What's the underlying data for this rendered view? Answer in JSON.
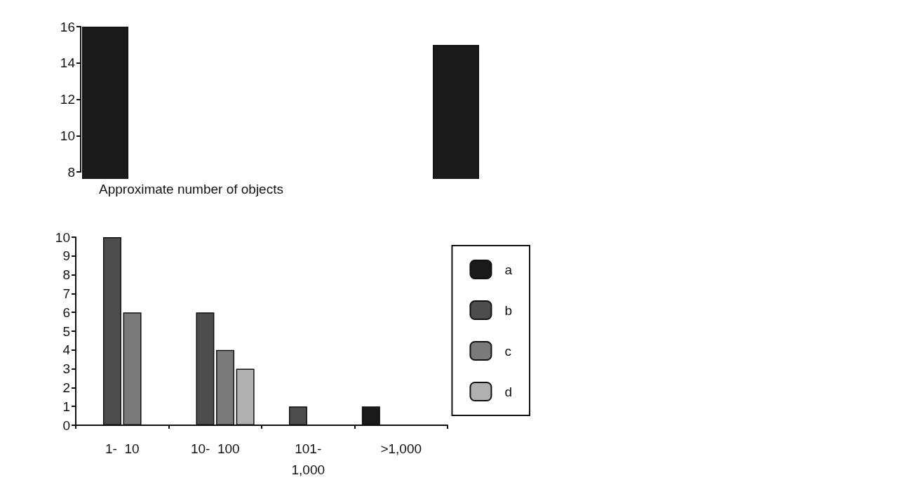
{
  "chart_data": [
    {
      "type": "bar",
      "categories": [
        null,
        null
      ],
      "series": [
        {
          "color": "#1a1a1a",
          "values": [
            16,
            15
          ]
        }
      ],
      "ylim": [
        8,
        16
      ],
      "yticks": [
        8,
        10,
        12,
        14,
        16
      ],
      "tick_labels": "y",
      "grid": false,
      "legend": false
    },
    {
      "type": "bar",
      "title": "Approximate number of objects",
      "categories": [
        "1-  10",
        "10-  100",
        "101-\n1,000",
        ">1,000"
      ],
      "series": [
        {
          "name": "a",
          "color": "#1a1a1a",
          "values": [
            null,
            null,
            null,
            1
          ]
        },
        {
          "name": "b",
          "color": "#4d4d4d",
          "values": [
            10,
            6,
            1,
            null
          ]
        },
        {
          "name": "c",
          "color": "#7a7a7a",
          "values": [
            6,
            4,
            null,
            null
          ]
        },
        {
          "name": "d",
          "color": "#b0b0b0",
          "values": [
            null,
            3,
            null,
            null
          ]
        }
      ],
      "ylim": [
        0,
        10
      ],
      "yticks": [
        0,
        1,
        2,
        3,
        4,
        5,
        6,
        7,
        8,
        9,
        10
      ],
      "grid": false,
      "legend": "right"
    }
  ]
}
